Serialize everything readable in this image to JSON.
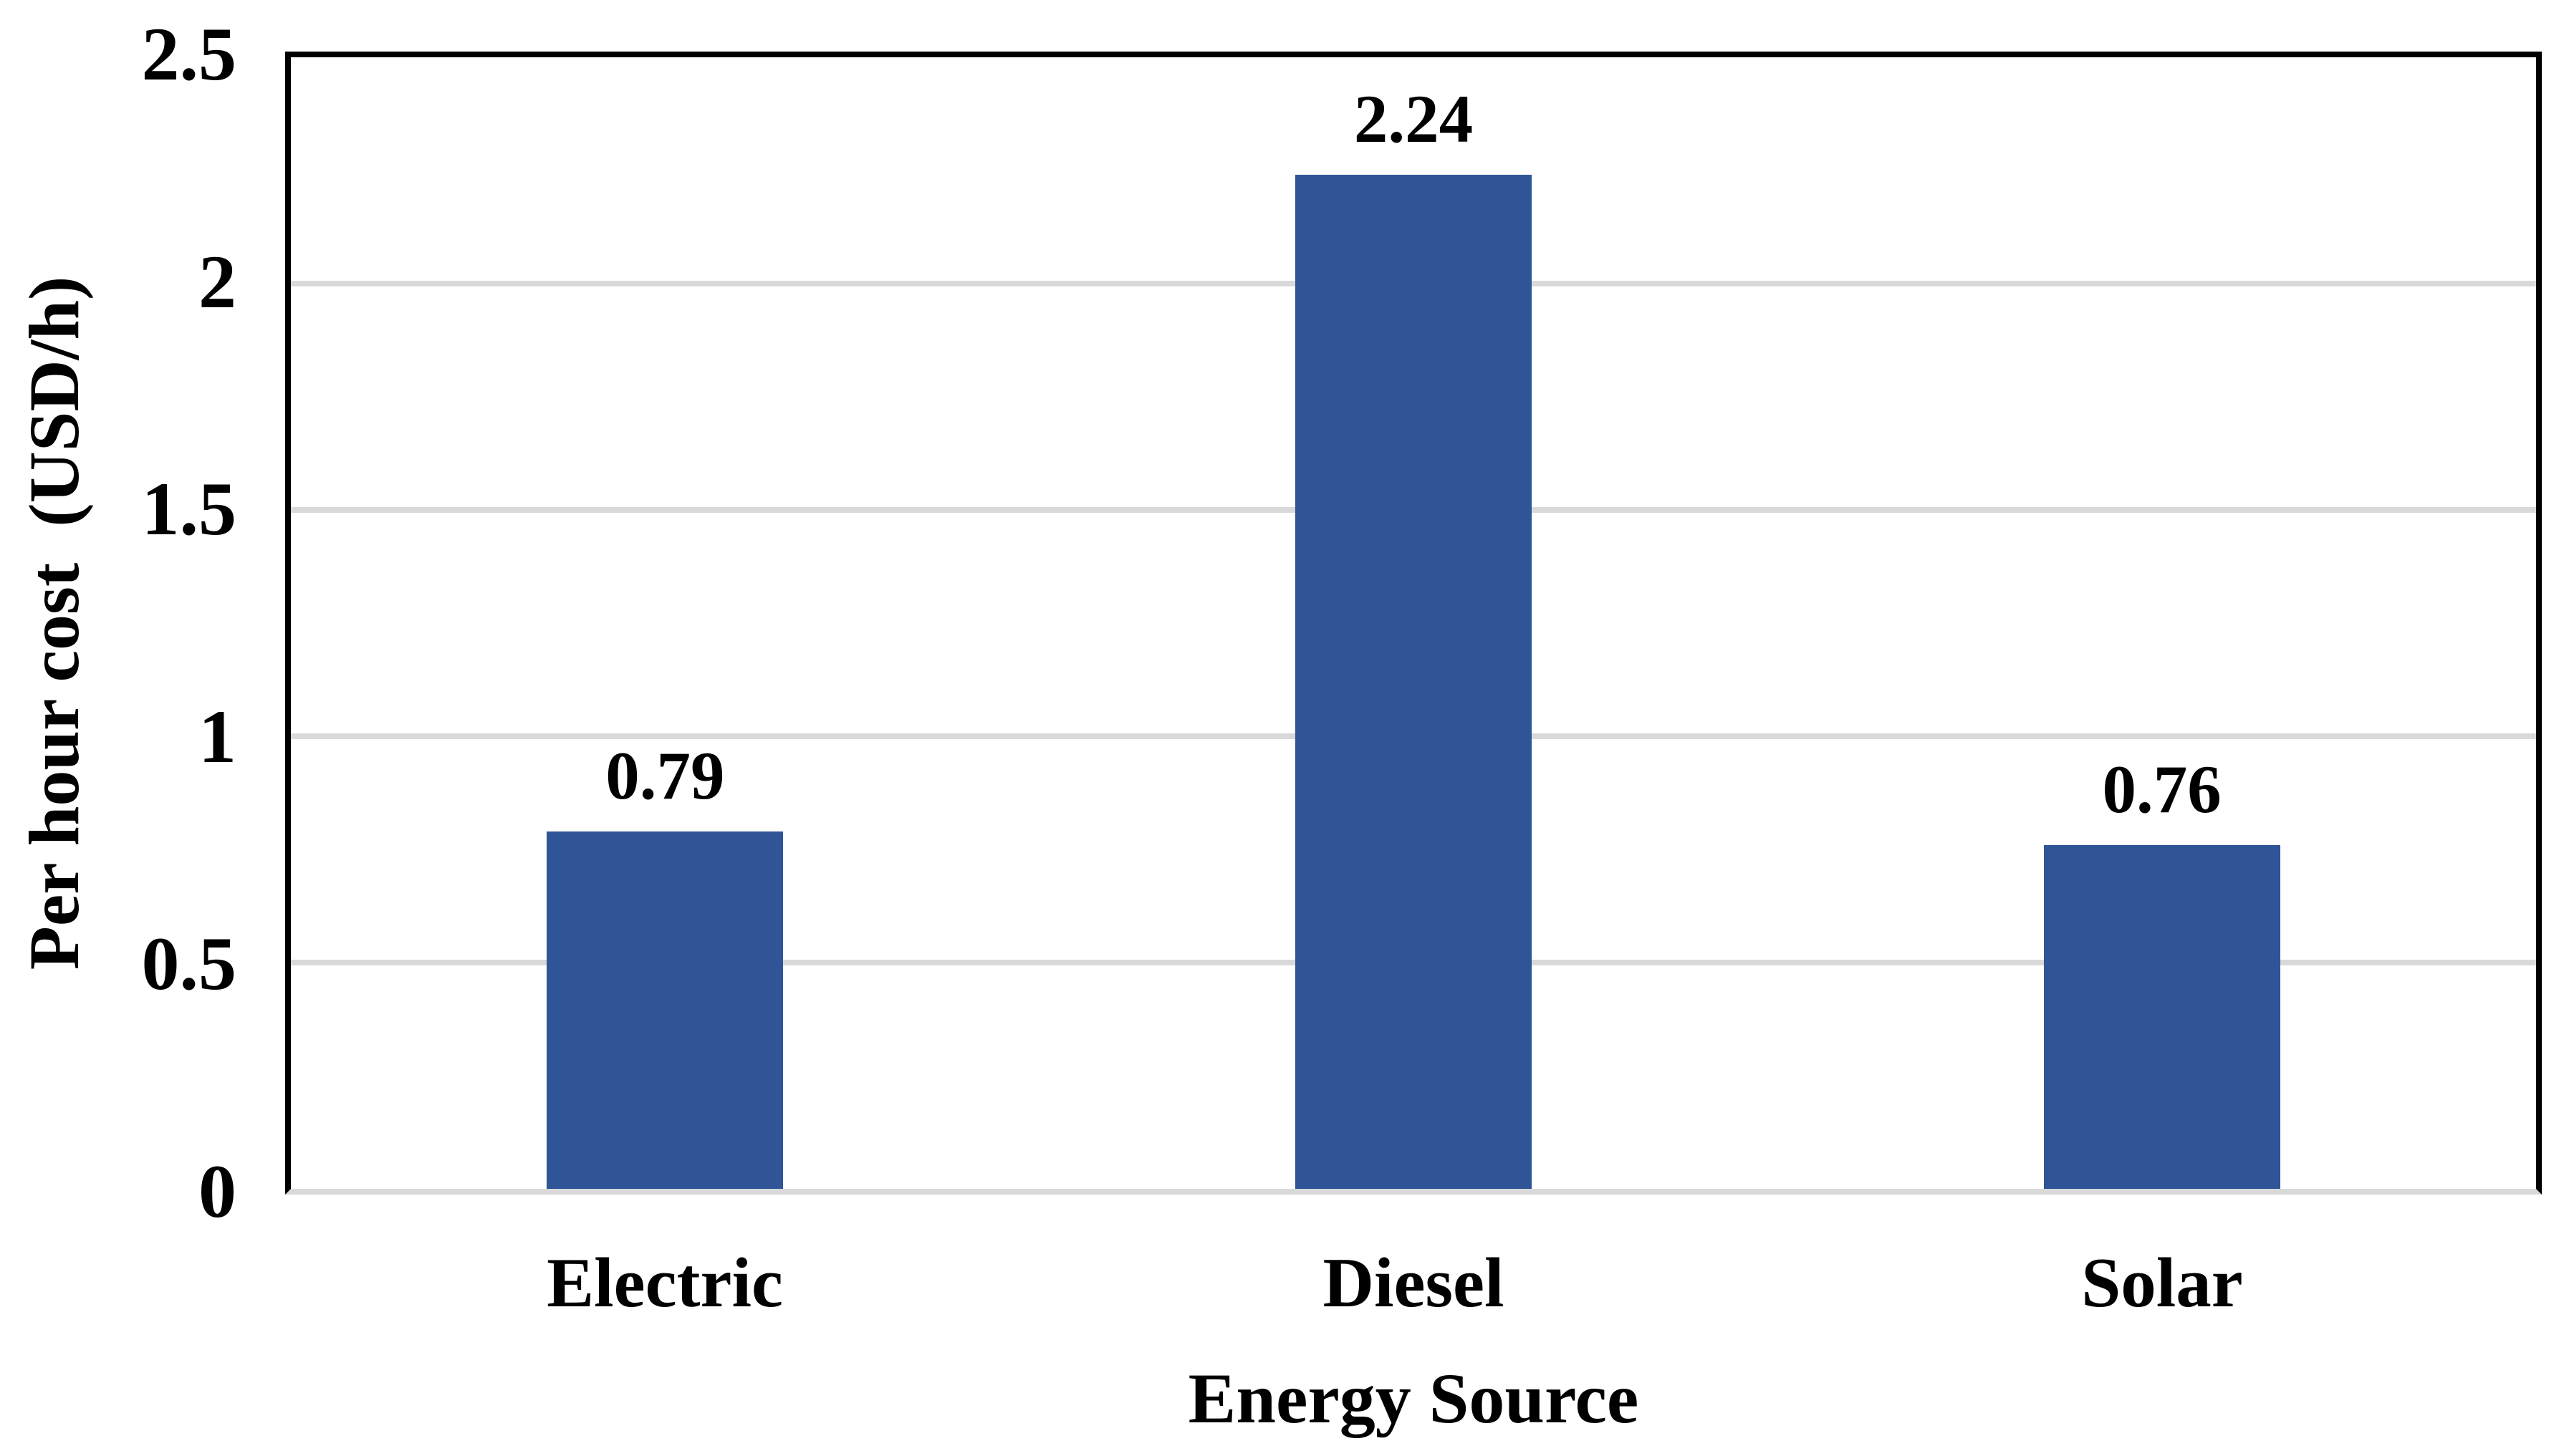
{
  "chart_data": {
    "type": "bar",
    "title": "",
    "xlabel": "Energy Source",
    "ylabel": "Per hour cost  (USD/h)",
    "categories": [
      "Electric",
      "Diesel",
      "Solar"
    ],
    "values": [
      0.79,
      2.24,
      0.76
    ],
    "value_labels": [
      "0.79",
      "2.24",
      "0.76"
    ],
    "ylim": [
      0,
      2.5
    ],
    "ytick_step": 0.5,
    "ytick_labels": [
      "0",
      "0.5",
      "1",
      "1.5",
      "2",
      "2.5"
    ],
    "grid": "horizontal-major",
    "legend": "none",
    "colors": {
      "bar": "#2F5597",
      "gridline": "#D9D9D9",
      "axis_border": "#000000",
      "text": "#000000",
      "background": "#FFFFFF"
    }
  }
}
